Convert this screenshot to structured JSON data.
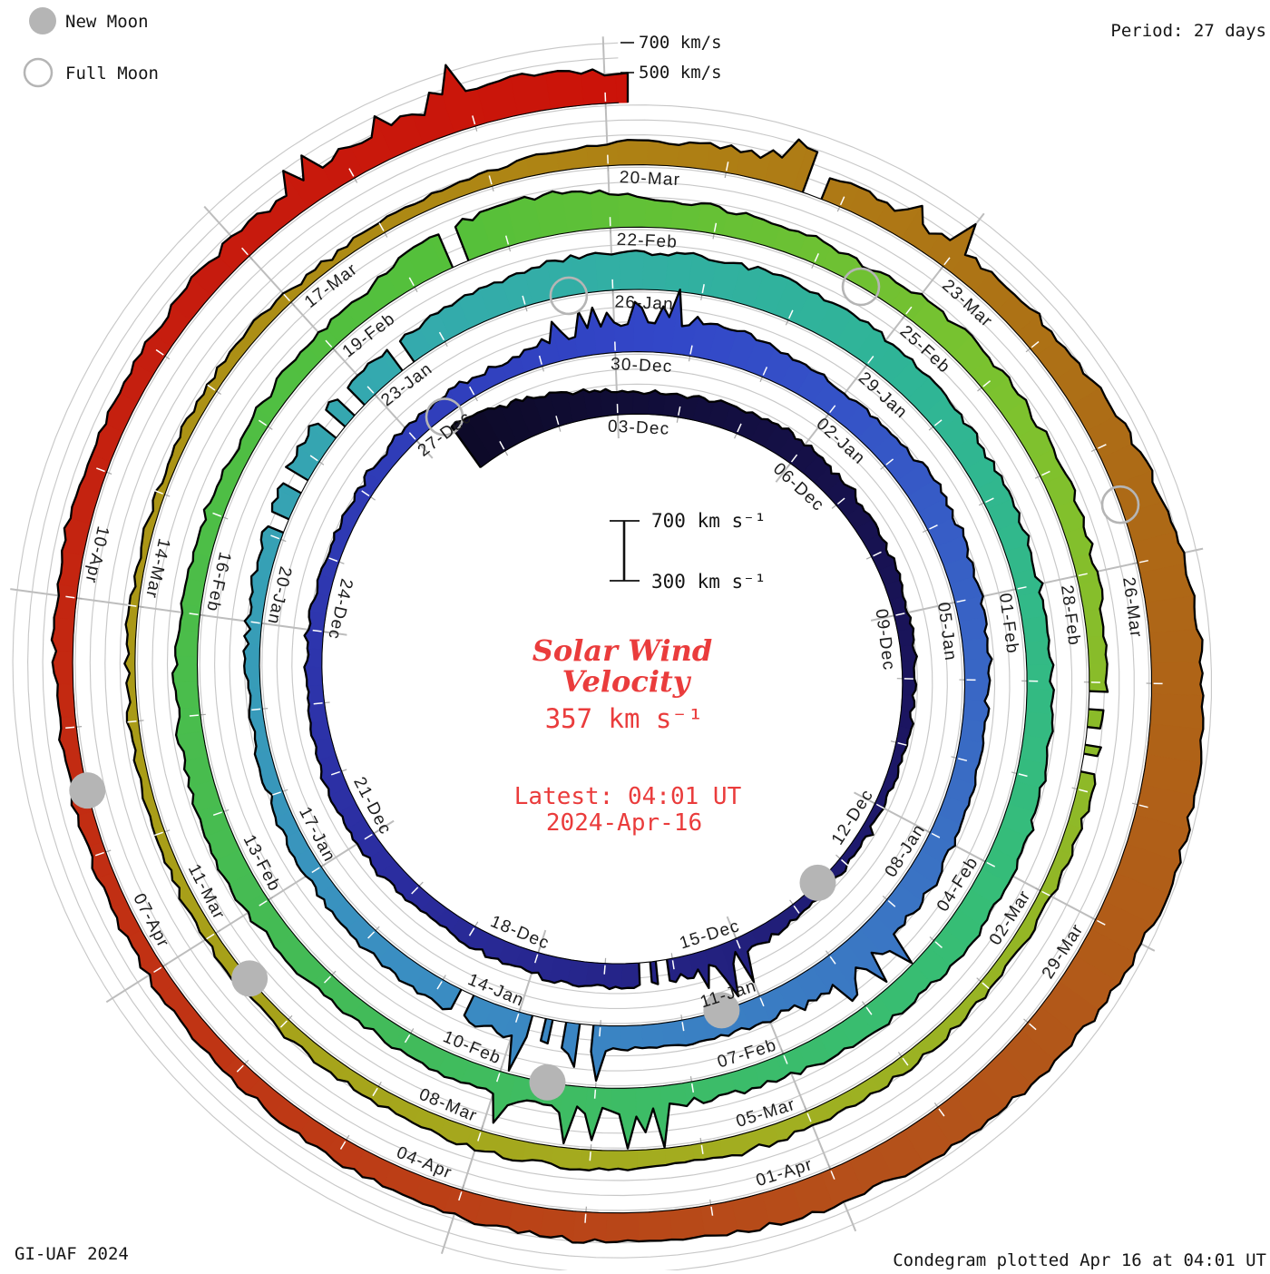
{
  "legend": {
    "new_moon": "New Moon",
    "full_moon": "Full Moon"
  },
  "period_label": "Period: 27 days",
  "outer_axis": {
    "label_700": "700 km/s",
    "label_500": "500 km/s"
  },
  "scalebar": {
    "top": "700 km s⁻¹",
    "bottom": "300 km s⁻¹"
  },
  "center": {
    "title_line1": "Solar Wind",
    "title_line2": "Velocity",
    "value": "357 km s⁻¹",
    "latest_line1": "Latest: 04:01 UT",
    "latest_line2": "2024-Apr-16",
    "accent_color": "#ea3c3c"
  },
  "footer": {
    "left": "GI-UAF 2024",
    "right": "Condegram plotted Apr 16 at 04:01 UT"
  },
  "chart_data": {
    "type": "area",
    "subtype": "spiral-condegram",
    "title": "Solar Wind Velocity",
    "units": "km/s",
    "period_days": 27,
    "start": "2023-11-30T12:00",
    "end": "2024-04-16T04:00",
    "latest_kms": 357,
    "radial_axis": {
      "baseline_kms": 300,
      "max_kms": 760,
      "gridlines_kms": [
        400,
        500,
        600,
        700
      ],
      "labeled_kms": [
        500,
        700
      ]
    },
    "grid_color": "#c8c8c8",
    "radial_line_color": "#bdbdbd",
    "moon_color": "#b5b5b5",
    "date_labels": [
      "03-Dec",
      "06-Dec",
      "09-Dec",
      "12-Dec",
      "15-Dec",
      "18-Dec",
      "21-Dec",
      "24-Dec",
      "27-Dec",
      "30-Dec",
      "02-Jan",
      "05-Jan",
      "08-Jan",
      "11-Jan",
      "14-Jan",
      "17-Jan",
      "20-Jan",
      "23-Jan",
      "26-Jan",
      "29-Jan",
      "01-Feb",
      "04-Feb",
      "07-Feb",
      "10-Feb",
      "13-Feb",
      "16-Feb",
      "19-Feb",
      "22-Feb",
      "25-Feb",
      "28-Feb",
      "02-Mar",
      "05-Mar",
      "08-Mar",
      "11-Mar",
      "14-Mar",
      "17-Mar",
      "20-Mar",
      "23-Mar",
      "26-Mar",
      "29-Mar",
      "01-Apr",
      "04-Apr",
      "07-Apr",
      "10-Apr"
    ],
    "daily": {
      "start_date": "2023-11-30",
      "values": [
        640,
        560,
        480,
        440,
        460,
        470,
        450,
        430,
        410,
        390,
        375,
        370,
        365,
        380,
        400,
        430,
        450,
        460,
        440,
        410,
        430,
        440,
        420,
        405,
        395,
        385,
        400,
        420,
        410,
        460,
        510,
        530,
        490,
        470,
        510,
        490,
        465,
        450,
        470,
        490,
        510,
        490,
        465,
        445,
        480,
        465,
        445,
        425,
        405,
        390,
        385,
        405,
        445,
        480,
        465,
        505,
        545,
        550,
        550,
        525,
        505,
        485,
        465,
        455,
        475,
        500,
        510,
        490,
        470,
        435,
        455,
        470,
        445,
        425,
        450,
        480,
        465,
        445,
        425,
        405,
        425,
        445,
        560,
        580,
        490,
        465,
        445,
        480,
        465,
        445,
        425,
        405,
        390,
        378,
        388,
        398,
        412,
        422,
        430,
        412,
        392,
        380,
        372,
        362,
        356,
        352,
        362,
        372,
        362,
        382,
        425,
        455,
        475,
        455,
        465,
        505,
        570,
        620,
        660,
        670,
        635,
        590,
        550,
        520,
        500,
        480,
        460,
        440,
        425,
        412,
        402,
        422,
        442,
        432,
        452,
        482,
        520,
        555,
        450
      ]
    },
    "moons": {
      "new": [
        "2023-12-13",
        "2024-01-11",
        "2024-02-09",
        "2024-03-10",
        "2024-04-08"
      ],
      "full": [
        "2023-12-27",
        "2024-01-25",
        "2024-02-24",
        "2024-03-25"
      ]
    },
    "gap_days": [
      "2023-12-16",
      "2024-01-13",
      "2024-01-14",
      "2024-01-21",
      "2024-01-22",
      "2024-01-23",
      "2024-02-20",
      "2024-02-29",
      "2024-03-21"
    ],
    "spike_days": [
      "2023-12-15",
      "2023-12-29",
      "2023-12-30",
      "2024-01-09",
      "2024-01-10",
      "2024-01-13",
      "2024-02-08",
      "2024-02-09",
      "2024-03-21",
      "2024-03-22",
      "2024-04-13",
      "2024-04-14"
    ],
    "color_stops": [
      [
        0,
        "#0d0a28"
      ],
      [
        10,
        "#1b1560"
      ],
      [
        20,
        "#2b2da0"
      ],
      [
        30,
        "#3246c8"
      ],
      [
        38,
        "#3a6ec4"
      ],
      [
        46,
        "#3a8ec2"
      ],
      [
        54,
        "#34aaae"
      ],
      [
        60,
        "#2fb596"
      ],
      [
        66,
        "#36bd76"
      ],
      [
        74,
        "#44bb55"
      ],
      [
        82,
        "#55c03a"
      ],
      [
        88,
        "#7ec22e"
      ],
      [
        96,
        "#a2ae20"
      ],
      [
        104,
        "#aa9a16"
      ],
      [
        110,
        "#ae8414"
      ],
      [
        116,
        "#ad6a16"
      ],
      [
        122,
        "#b4511a"
      ],
      [
        128,
        "#c03414"
      ],
      [
        134,
        "#c61c0e"
      ],
      [
        138,
        "#cc1208"
      ]
    ]
  }
}
